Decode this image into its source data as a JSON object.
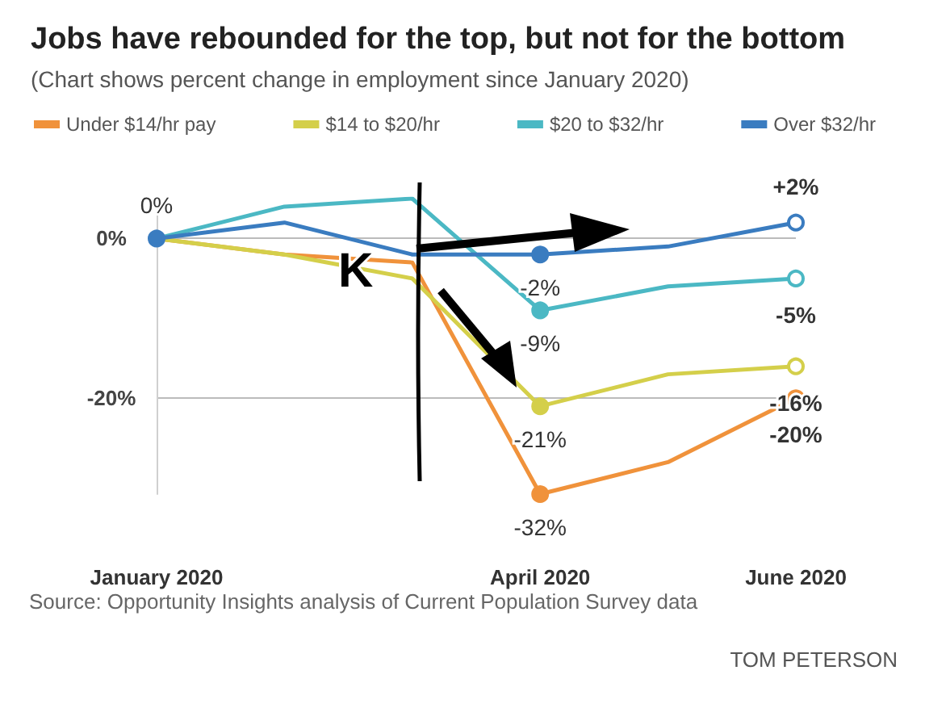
{
  "chart_data": {
    "type": "line",
    "title": "Jobs have rebounded for the top, but not for the bottom",
    "subtitle": "(Chart shows percent change in employment since January 2020)",
    "categories": [
      "January 2020",
      null,
      null,
      "April 2020",
      null,
      "June 2020"
    ],
    "series": [
      {
        "name": "Under $14/hr pay",
        "color": "#f0923b",
        "values": [
          0,
          -2,
          -3,
          -32,
          -28,
          -20
        ],
        "value_labels": [
          null,
          null,
          null,
          "-32%",
          null,
          "-20%"
        ]
      },
      {
        "name": "$14 to $20/hr",
        "color": "#d4cf4a",
        "values": [
          0,
          -2,
          -5,
          -21,
          -17,
          -16
        ],
        "value_labels": [
          null,
          null,
          null,
          "-21%",
          null,
          "-16%"
        ]
      },
      {
        "name": "$20 to $32/hr",
        "color": "#4bb8c4",
        "values": [
          0,
          4,
          5,
          -9,
          -6,
          -5
        ],
        "value_labels": [
          null,
          null,
          null,
          "-9%",
          null,
          "-5%"
        ]
      },
      {
        "name": "Over $32/hr",
        "color": "#3a7cc0",
        "values": [
          0,
          2,
          -2,
          -2,
          -1,
          2
        ],
        "value_labels": [
          "0%",
          null,
          null,
          "-2%",
          null,
          "+2%"
        ]
      }
    ],
    "ylim": [
      -32,
      5
    ],
    "yticks": [
      {
        "value": 0,
        "label": "0%"
      },
      {
        "value": -20,
        "label": "-20%"
      }
    ],
    "grid": "y",
    "legend": "top",
    "line_style": "solid",
    "annotations": [
      {
        "text": "K",
        "y": -4
      },
      "Source: Opportunity Insights analysis of Current Population Survey data",
      "TOM PETERSON"
    ]
  }
}
